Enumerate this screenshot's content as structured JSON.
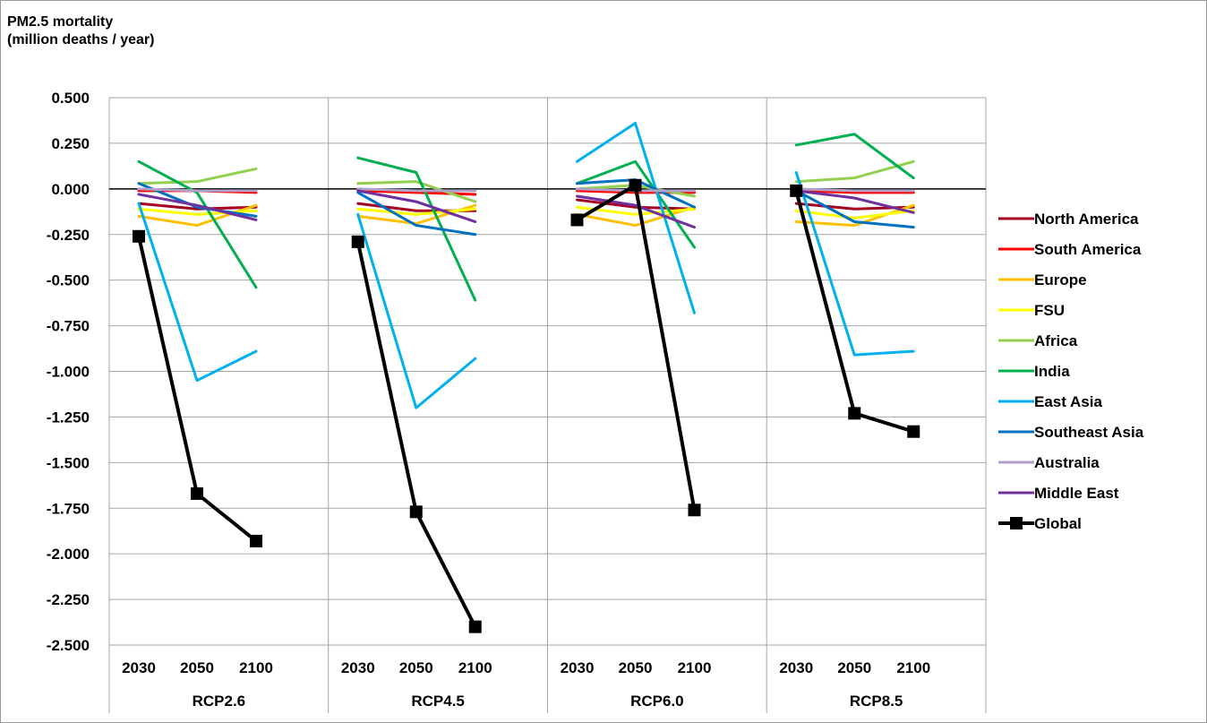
{
  "chart_data": {
    "type": "line",
    "ylabel_line1": "PM2.5 mortality",
    "ylabel_line2": "(million deaths / year)",
    "ylim": [
      -2.5,
      0.5
    ],
    "y_ticks": [
      "0.500",
      "0.250",
      "0.000",
      "-0.250",
      "-0.500",
      "-0.750",
      "-1.000",
      "-1.250",
      "-1.500",
      "-1.750",
      "-2.000",
      "-2.250",
      "-2.500"
    ],
    "grid": true,
    "legend_position": "right",
    "scenarios": [
      "RCP2.6",
      "RCP4.5",
      "RCP6.0",
      "RCP8.5"
    ],
    "years": [
      "2030",
      "2050",
      "2100"
    ],
    "series": [
      {
        "name": "North America",
        "color": "#a50021",
        "values": [
          [
            -0.08,
            -0.11,
            -0.1
          ],
          [
            -0.08,
            -0.12,
            -0.12
          ],
          [
            -0.06,
            -0.1,
            -0.11
          ],
          [
            -0.08,
            -0.11,
            -0.1
          ]
        ]
      },
      {
        "name": "South America",
        "color": "#ff0000",
        "values": [
          [
            -0.01,
            -0.01,
            -0.02
          ],
          [
            -0.01,
            -0.02,
            -0.03
          ],
          [
            -0.01,
            -0.02,
            -0.02
          ],
          [
            -0.01,
            -0.02,
            -0.02
          ]
        ]
      },
      {
        "name": "Europe",
        "color": "#ffc000",
        "values": [
          [
            -0.15,
            -0.2,
            -0.09
          ],
          [
            -0.15,
            -0.19,
            -0.09
          ],
          [
            -0.14,
            -0.2,
            -0.1
          ],
          [
            -0.18,
            -0.2,
            -0.09
          ]
        ]
      },
      {
        "name": "FSU",
        "color": "#ffff00",
        "values": [
          [
            -0.11,
            -0.14,
            -0.12
          ],
          [
            -0.11,
            -0.14,
            -0.11
          ],
          [
            -0.1,
            -0.14,
            -0.11
          ],
          [
            -0.12,
            -0.16,
            -0.12
          ]
        ]
      },
      {
        "name": "Africa",
        "color": "#92d050",
        "values": [
          [
            0.03,
            0.04,
            0.11
          ],
          [
            0.03,
            0.04,
            -0.07
          ],
          [
            0.0,
            0.02,
            -0.04
          ],
          [
            0.04,
            0.06,
            0.15
          ]
        ]
      },
      {
        "name": "India",
        "color": "#00b050",
        "values": [
          [
            0.15,
            -0.02,
            -0.54
          ],
          [
            0.17,
            0.09,
            -0.61
          ],
          [
            0.03,
            0.15,
            -0.32
          ],
          [
            0.24,
            0.3,
            0.06
          ]
        ]
      },
      {
        "name": "East Asia",
        "color": "#00b0f0",
        "values": [
          [
            -0.08,
            -1.05,
            -0.89
          ],
          [
            -0.14,
            -1.2,
            -0.93
          ],
          [
            0.15,
            0.36,
            -0.68
          ],
          [
            0.09,
            -0.91,
            -0.89
          ]
        ]
      },
      {
        "name": "Southeast Asia",
        "color": "#0070c0",
        "values": [
          [
            0.03,
            -0.1,
            -0.15
          ],
          [
            -0.02,
            -0.2,
            -0.25
          ],
          [
            0.03,
            0.05,
            -0.1
          ],
          [
            -0.01,
            -0.18,
            -0.21
          ]
        ]
      },
      {
        "name": "Australia",
        "color": "#b1a0c7",
        "values": [
          [
            0.0,
            -0.01,
            -0.01
          ],
          [
            0.0,
            -0.01,
            -0.01
          ],
          [
            0.0,
            -0.01,
            -0.01
          ],
          [
            0.0,
            -0.01,
            -0.01
          ]
        ]
      },
      {
        "name": "Middle East",
        "color": "#7030a0",
        "values": [
          [
            -0.03,
            -0.09,
            -0.17
          ],
          [
            -0.01,
            -0.07,
            -0.18
          ],
          [
            -0.04,
            -0.09,
            -0.21
          ],
          [
            -0.01,
            -0.05,
            -0.13
          ]
        ]
      },
      {
        "name": "Global",
        "color": "#000000",
        "marker": "square",
        "values": [
          [
            -0.26,
            -1.67,
            -1.93
          ],
          [
            -0.29,
            -1.77,
            -2.4
          ],
          [
            -0.17,
            0.02,
            -1.76
          ],
          [
            -0.01,
            -1.23,
            -1.33
          ]
        ]
      }
    ]
  }
}
